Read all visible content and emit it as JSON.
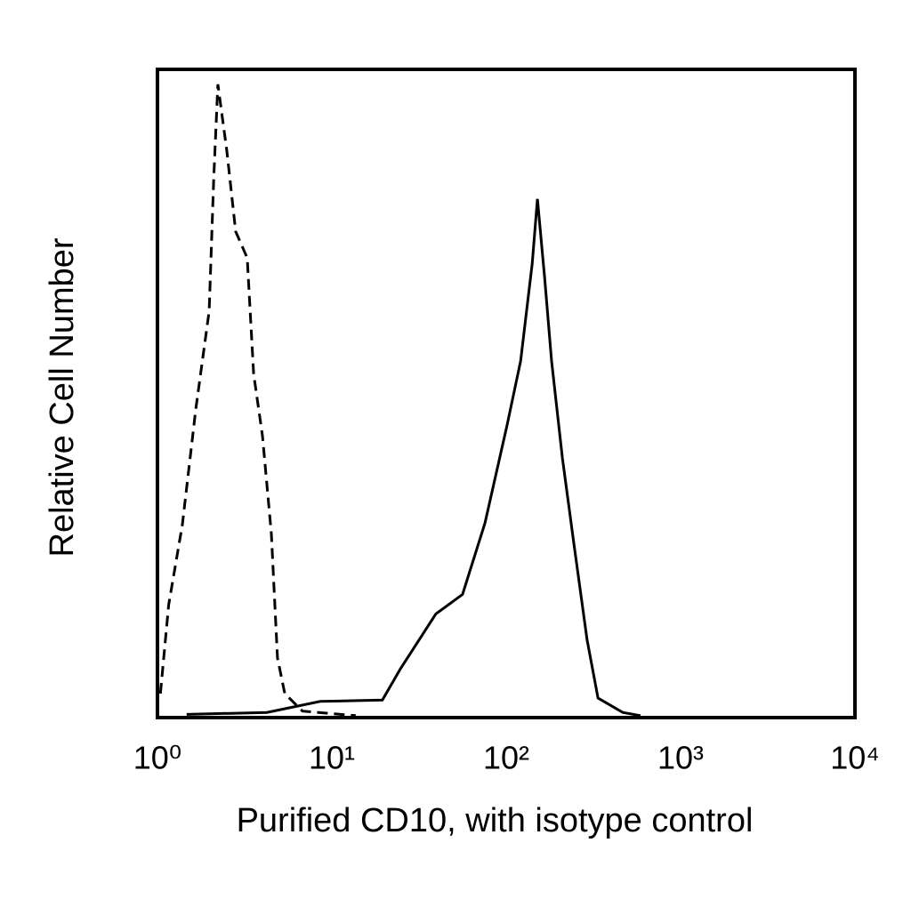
{
  "chart_data": {
    "type": "line",
    "xlabel": "Purified CD10, with isotype control",
    "ylabel": "Relative Cell Number",
    "xscale": "log",
    "xlim": [
      1,
      10000
    ],
    "ylim": [
      0,
      100
    ],
    "xticks": [
      {
        "value": 1,
        "label": "10⁰"
      },
      {
        "value": 10,
        "label": "10¹"
      },
      {
        "value": 100,
        "label": "10²"
      },
      {
        "value": 1000,
        "label": "10³"
      },
      {
        "value": 10000,
        "label": "10⁴"
      }
    ],
    "series": [
      {
        "color": "#000000",
        "linestyle": "dashed",
        "x": [
          1.04,
          1.16,
          1.39,
          1.66,
          1.98,
          2.1,
          2.22,
          2.5,
          2.81,
          3.27,
          3.56,
          4.0,
          4.5,
          4.88,
          5.37,
          6.79,
          13.7
        ],
        "values": [
          3.7,
          17.4,
          29.8,
          47.6,
          62.7,
          83,
          97.7,
          87.4,
          75,
          70.9,
          53,
          43.5,
          28.4,
          9.2,
          3.7,
          1,
          0.3
        ]
      },
      {
        "color": "#000000",
        "linestyle": "solid",
        "x": [
          1.47,
          4.24,
          8.58,
          19.5,
          24.7,
          39.5,
          56.2,
          75.5,
          101,
          121,
          141,
          151,
          166,
          182,
          210,
          244,
          291,
          336,
          466,
          589
        ],
        "values": [
          0.5,
          0.8,
          2.5,
          2.7,
          7.5,
          16,
          19,
          30,
          45,
          55,
          70,
          80,
          68,
          55,
          40,
          27,
          12,
          3,
          0.8,
          0.3
        ]
      }
    ]
  }
}
